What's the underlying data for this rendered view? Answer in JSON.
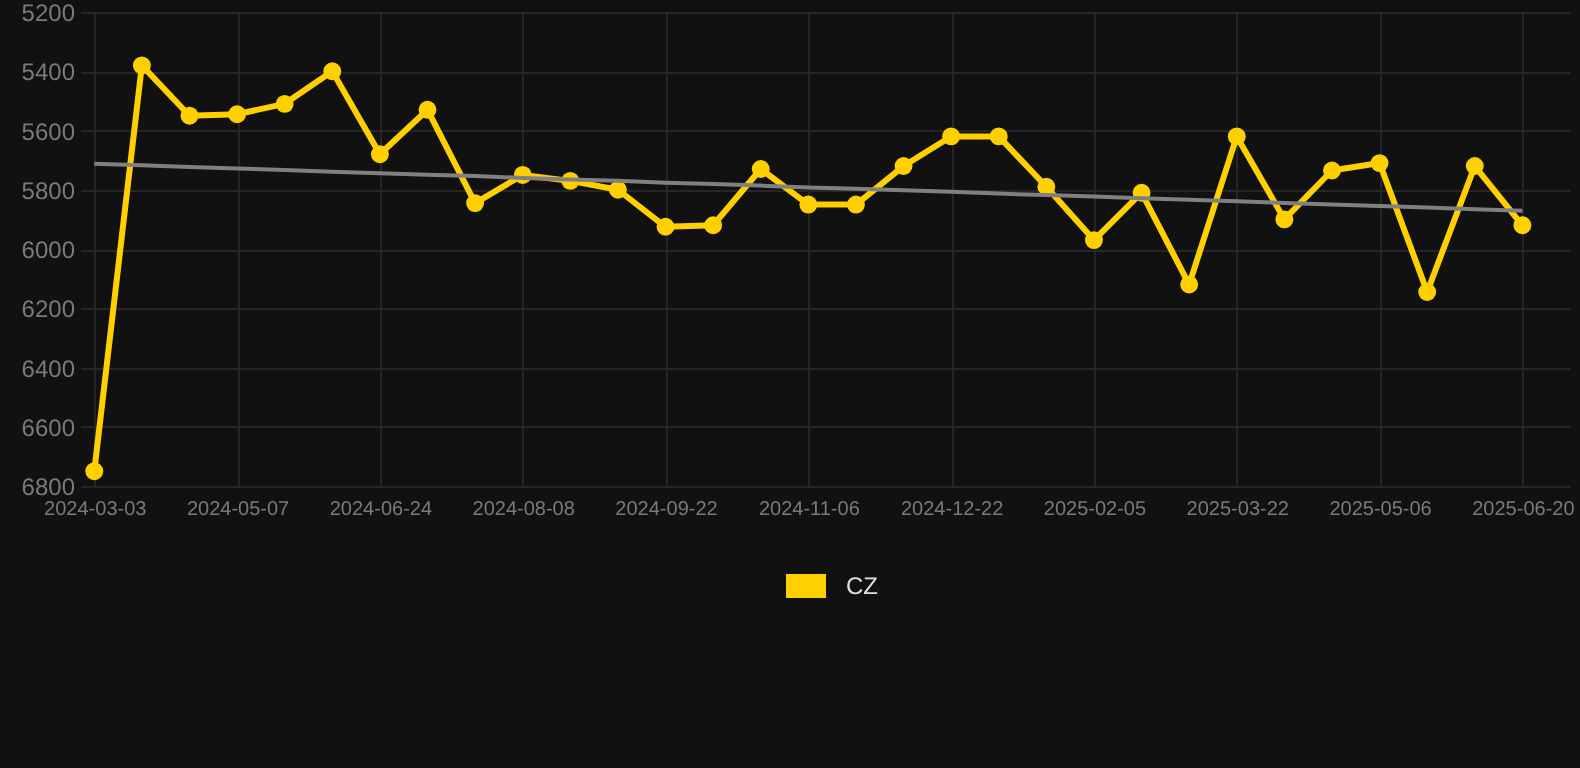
{
  "chart_data": {
    "type": "line",
    "categories": [
      "2024-03-03",
      null,
      null,
      "2024-05-07",
      null,
      null,
      "2024-06-24",
      null,
      null,
      "2024-08-08",
      null,
      null,
      "2024-09-22",
      null,
      null,
      "2024-11-06",
      null,
      null,
      "2024-12-22",
      null,
      null,
      "2025-02-05",
      null,
      null,
      "2025-03-22",
      null,
      null,
      "2025-05-06",
      null,
      null,
      "2025-06-20"
    ],
    "series": [
      {
        "name": "CZ",
        "color": "#ffd000",
        "values": [
          6750,
          5380,
          5550,
          5545,
          5510,
          5400,
          5680,
          5530,
          5845,
          5750,
          5770,
          5800,
          5925,
          5920,
          5730,
          5850,
          5850,
          5720,
          5620,
          5620,
          5790,
          5970,
          5810,
          6120,
          5620,
          5900,
          5735,
          5710,
          6145,
          5720,
          5920
        ]
      },
      {
        "type": "line",
        "marker": "none",
        "color": "#808080",
        "values": [
          5712,
          5717,
          5723,
          5728,
          5733,
          5739,
          5744,
          5749,
          5754,
          5760,
          5765,
          5770,
          5776,
          5781,
          5786,
          5792,
          5797,
          5802,
          5807,
          5813,
          5818,
          5823,
          5829,
          5834,
          5839,
          5845,
          5850,
          5855,
          5860,
          5866,
          5871
        ]
      }
    ],
    "ylim": [
      6800,
      5200
    ],
    "yticks": [
      5200,
      5400,
      5600,
      5800,
      6000,
      6200,
      6400,
      6600,
      6800
    ],
    "grid": true,
    "legend": "bottom",
    "marker": "circle"
  }
}
